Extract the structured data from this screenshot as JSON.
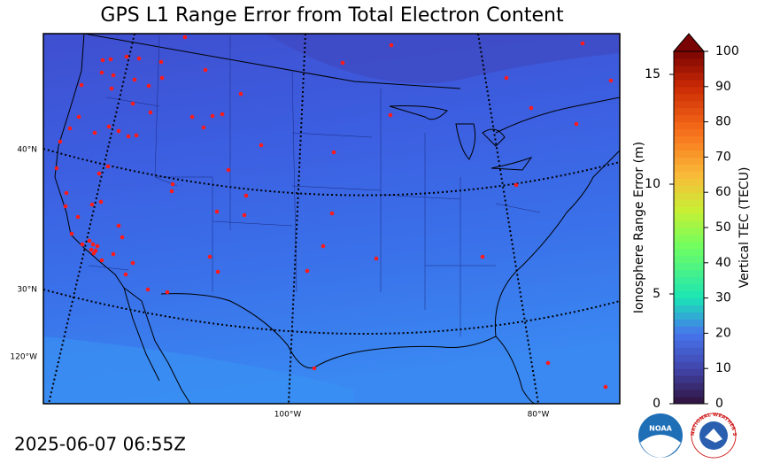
{
  "title": "GPS L1 Range Error from Total Electron Content",
  "timestamp": "2025-06-07 06:55Z",
  "map": {
    "lat_labels": [
      "40°N",
      "30°N"
    ],
    "lon_labels": [
      "120°W",
      "100°W",
      "80°W"
    ]
  },
  "colorbar": {
    "label": "Vertical TEC (TECU)",
    "lim": [
      0,
      100
    ],
    "ticks": [
      0,
      10,
      20,
      30,
      40,
      50,
      60,
      70,
      80,
      90,
      100
    ],
    "range_error": {
      "label": "Ionosphere Range Error (m)",
      "lim": [
        0,
        16.05
      ],
      "ticks": [
        0,
        5,
        10,
        15
      ]
    }
  },
  "logos": {
    "noaa": "NOAA",
    "nws": "NATIONAL WEATHER SERVICE"
  }
}
